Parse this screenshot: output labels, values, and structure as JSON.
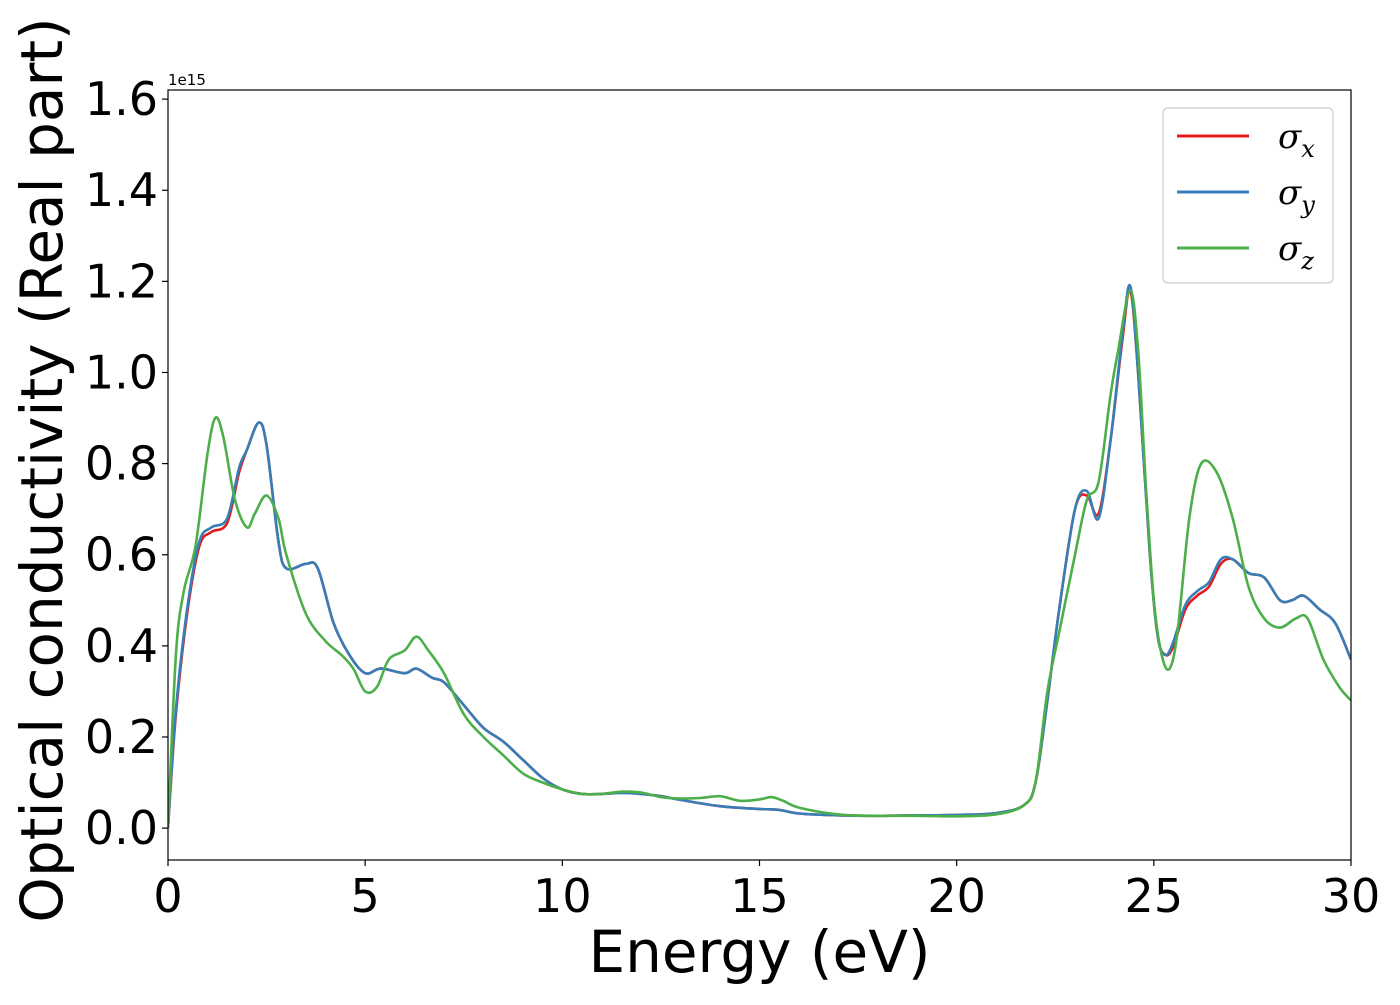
{
  "chart_data": {
    "type": "line",
    "title": "",
    "xlabel": "Energy (eV)",
    "ylabel": "Optical conductivity (Real part)",
    "y_offset_label": "1e15",
    "xlim": [
      0,
      30
    ],
    "ylim": [
      -0.07,
      1.62
    ],
    "x_ticks": [
      0,
      5,
      10,
      15,
      20,
      25,
      30
    ],
    "x_tick_labels": [
      "0",
      "5",
      "10",
      "15",
      "20",
      "25",
      "30"
    ],
    "y_ticks": [
      0.0,
      0.2,
      0.4,
      0.6,
      0.8,
      1.0,
      1.2,
      1.4,
      1.6
    ],
    "y_tick_labels": [
      "0.0",
      "0.2",
      "0.4",
      "0.6",
      "0.8",
      "1.0",
      "1.2",
      "1.4",
      "1.6"
    ],
    "grid": false,
    "legend_position": "top-right",
    "series": [
      {
        "name": "σx",
        "label_base": "σ",
        "label_sub": "x",
        "color": "#e41a1c",
        "x": [
          0,
          0.2,
          0.5,
          0.8,
          1.1,
          1.5,
          1.8,
          2.0,
          2.3,
          2.5,
          2.8,
          3.0,
          3.5,
          3.8,
          4.2,
          4.6,
          5.0,
          5.4,
          6.0,
          6.3,
          6.7,
          7.0,
          7.5,
          8.0,
          8.5,
          9.0,
          9.5,
          10.0,
          10.5,
          11.0,
          11.5,
          12.0,
          12.5,
          13.0,
          14.0,
          15.0,
          15.5,
          16.0,
          17.0,
          18.0,
          19.0,
          20.0,
          21.0,
          21.7,
          22.0,
          22.3,
          22.6,
          23.0,
          23.3,
          23.6,
          23.9,
          24.2,
          24.4,
          24.6,
          24.9,
          25.1,
          25.3,
          25.5,
          25.8,
          26.1,
          26.4,
          26.7,
          27.0,
          27.4,
          27.8,
          28.2,
          28.5,
          28.8,
          29.2,
          29.6,
          30.0
        ],
        "values": [
          0.0,
          0.25,
          0.48,
          0.62,
          0.65,
          0.67,
          0.78,
          0.83,
          0.89,
          0.84,
          0.63,
          0.57,
          0.58,
          0.57,
          0.45,
          0.38,
          0.34,
          0.35,
          0.34,
          0.35,
          0.33,
          0.32,
          0.27,
          0.22,
          0.19,
          0.15,
          0.11,
          0.085,
          0.075,
          0.075,
          0.078,
          0.075,
          0.07,
          0.062,
          0.048,
          0.042,
          0.04,
          0.032,
          0.028,
          0.027,
          0.028,
          0.029,
          0.033,
          0.05,
          0.1,
          0.28,
          0.48,
          0.7,
          0.73,
          0.69,
          0.85,
          1.07,
          1.18,
          1.0,
          0.6,
          0.42,
          0.38,
          0.4,
          0.48,
          0.51,
          0.53,
          0.58,
          0.59,
          0.56,
          0.55,
          0.5,
          0.5,
          0.51,
          0.48,
          0.45,
          0.37
        ]
      },
      {
        "name": "σy",
        "label_base": "σ",
        "label_sub": "y",
        "color": "#377eb8",
        "x": [
          0,
          0.2,
          0.5,
          0.8,
          1.1,
          1.5,
          1.8,
          2.0,
          2.3,
          2.5,
          2.8,
          3.0,
          3.5,
          3.8,
          4.2,
          4.6,
          5.0,
          5.4,
          6.0,
          6.3,
          6.7,
          7.0,
          7.5,
          8.0,
          8.5,
          9.0,
          9.5,
          10.0,
          10.5,
          11.0,
          11.5,
          12.0,
          12.5,
          13.0,
          14.0,
          15.0,
          15.5,
          16.0,
          17.0,
          18.0,
          19.0,
          20.0,
          21.0,
          21.7,
          22.0,
          22.3,
          22.6,
          23.0,
          23.3,
          23.6,
          23.9,
          24.2,
          24.4,
          24.6,
          24.9,
          25.1,
          25.3,
          25.5,
          25.8,
          26.1,
          26.4,
          26.7,
          27.0,
          27.4,
          27.8,
          28.2,
          28.5,
          28.8,
          29.2,
          29.6,
          30.0
        ],
        "values": [
          0.0,
          0.26,
          0.49,
          0.63,
          0.66,
          0.68,
          0.79,
          0.83,
          0.89,
          0.84,
          0.63,
          0.57,
          0.58,
          0.57,
          0.45,
          0.38,
          0.34,
          0.35,
          0.34,
          0.35,
          0.33,
          0.32,
          0.27,
          0.22,
          0.19,
          0.15,
          0.11,
          0.085,
          0.075,
          0.075,
          0.077,
          0.075,
          0.07,
          0.062,
          0.048,
          0.042,
          0.04,
          0.032,
          0.028,
          0.027,
          0.028,
          0.029,
          0.033,
          0.05,
          0.1,
          0.28,
          0.48,
          0.7,
          0.74,
          0.68,
          0.85,
          1.08,
          1.19,
          1.0,
          0.6,
          0.42,
          0.38,
          0.41,
          0.49,
          0.52,
          0.54,
          0.59,
          0.59,
          0.56,
          0.55,
          0.5,
          0.5,
          0.51,
          0.48,
          0.45,
          0.37
        ]
      },
      {
        "name": "σz",
        "label_base": "σ",
        "label_sub": "z",
        "color": "#4daf4a",
        "x": [
          0,
          0.2,
          0.4,
          0.7,
          1.0,
          1.2,
          1.4,
          1.7,
          2.0,
          2.2,
          2.5,
          2.8,
          3.0,
          3.5,
          4.0,
          4.4,
          4.7,
          5.0,
          5.3,
          5.6,
          6.0,
          6.3,
          6.6,
          7.0,
          7.5,
          8.0,
          8.5,
          9.0,
          9.5,
          10.0,
          10.5,
          11.0,
          11.5,
          12.0,
          12.5,
          13.0,
          13.5,
          14.0,
          14.5,
          15.0,
          15.3,
          15.6,
          16.0,
          17.0,
          18.0,
          19.0,
          20.0,
          21.0,
          21.7,
          22.0,
          22.3,
          22.6,
          23.0,
          23.3,
          23.6,
          23.9,
          24.1,
          24.4,
          24.6,
          24.8,
          25.0,
          25.2,
          25.4,
          25.6,
          25.9,
          26.2,
          26.6,
          27.0,
          27.4,
          27.8,
          28.2,
          28.6,
          28.9,
          29.3,
          29.7,
          30.0
        ],
        "values": [
          0.0,
          0.38,
          0.52,
          0.62,
          0.82,
          0.9,
          0.86,
          0.72,
          0.66,
          0.69,
          0.73,
          0.68,
          0.6,
          0.47,
          0.41,
          0.38,
          0.35,
          0.3,
          0.31,
          0.37,
          0.39,
          0.42,
          0.39,
          0.34,
          0.25,
          0.2,
          0.16,
          0.12,
          0.1,
          0.085,
          0.075,
          0.075,
          0.08,
          0.078,
          0.068,
          0.065,
          0.066,
          0.07,
          0.06,
          0.063,
          0.068,
          0.06,
          0.045,
          0.03,
          0.027,
          0.027,
          0.026,
          0.03,
          0.05,
          0.1,
          0.3,
          0.43,
          0.6,
          0.72,
          0.76,
          0.95,
          1.05,
          1.18,
          1.05,
          0.75,
          0.5,
          0.38,
          0.35,
          0.43,
          0.68,
          0.8,
          0.78,
          0.68,
          0.53,
          0.46,
          0.44,
          0.46,
          0.46,
          0.37,
          0.31,
          0.28
        ]
      }
    ]
  }
}
